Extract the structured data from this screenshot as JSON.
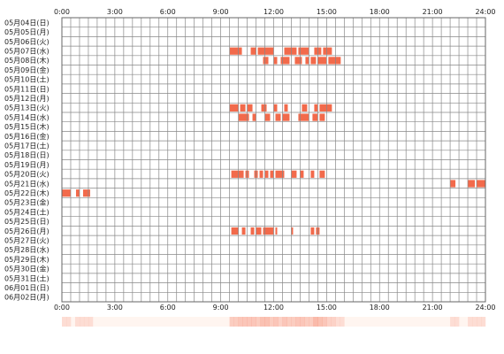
{
  "chart_data": {
    "type": "timeline",
    "title": "",
    "xlabel": "",
    "ylabel": "",
    "xlim": [
      0,
      24
    ],
    "x_ticks": [
      "0:00",
      "3:00",
      "6:00",
      "9:00",
      "12:00",
      "15:00",
      "18:00",
      "21:00",
      "24:00"
    ],
    "grid": true,
    "colors": {
      "bar": "#f26a4b",
      "grid": "#888888",
      "frame": "#666666",
      "heat": "#f26a4b",
      "heat_background": "#fff5f0"
    },
    "rows": [
      {
        "label": "05月04日(日)",
        "segments": []
      },
      {
        "label": "05月05日(月)",
        "segments": []
      },
      {
        "label": "05月06日(火)",
        "segments": []
      },
      {
        "label": "05月07日(水)",
        "segments": [
          [
            9.5,
            10.2
          ],
          [
            10.7,
            11.0
          ],
          [
            11.1,
            12.0
          ],
          [
            12.6,
            13.3
          ],
          [
            13.4,
            14.0
          ],
          [
            14.3,
            14.7
          ],
          [
            14.8,
            15.3
          ]
        ]
      },
      {
        "label": "05月08日(木)",
        "segments": [
          [
            11.4,
            11.7
          ],
          [
            12.0,
            12.2
          ],
          [
            12.4,
            12.9
          ],
          [
            13.2,
            13.6
          ],
          [
            13.8,
            14.0
          ],
          [
            14.1,
            14.4
          ],
          [
            14.5,
            15.0
          ],
          [
            15.1,
            15.8
          ]
        ]
      },
      {
        "label": "05月09日(金)",
        "segments": []
      },
      {
        "label": "05月10日(土)",
        "segments": []
      },
      {
        "label": "05月11日(日)",
        "segments": []
      },
      {
        "label": "05月12日(月)",
        "segments": []
      },
      {
        "label": "05月13日(火)",
        "segments": [
          [
            9.5,
            10.0
          ],
          [
            10.1,
            10.4
          ],
          [
            10.5,
            10.8
          ],
          [
            11.3,
            11.6
          ],
          [
            12.0,
            12.2
          ],
          [
            12.6,
            12.8
          ],
          [
            13.6,
            13.9
          ],
          [
            14.3,
            14.5
          ],
          [
            14.6,
            15.3
          ]
        ]
      },
      {
        "label": "05月14日(水)",
        "segments": [
          [
            10.0,
            10.6
          ],
          [
            10.8,
            11.0
          ],
          [
            11.5,
            11.8
          ],
          [
            12.1,
            12.4
          ],
          [
            12.5,
            12.9
          ],
          [
            13.4,
            14.0
          ],
          [
            14.2,
            14.5
          ],
          [
            14.6,
            14.9
          ]
        ]
      },
      {
        "label": "05月15日(木)",
        "segments": []
      },
      {
        "label": "05月16日(金)",
        "segments": []
      },
      {
        "label": "05月17日(土)",
        "segments": []
      },
      {
        "label": "05月18日(日)",
        "segments": []
      },
      {
        "label": "05月19日(月)",
        "segments": []
      },
      {
        "label": "05月20日(火)",
        "segments": [
          [
            9.6,
            10.3
          ],
          [
            10.4,
            10.6
          ],
          [
            10.9,
            11.1
          ],
          [
            11.2,
            11.4
          ],
          [
            11.5,
            11.7
          ],
          [
            11.8,
            12.0
          ],
          [
            12.1,
            12.6
          ],
          [
            13.0,
            13.3
          ],
          [
            13.5,
            13.7
          ],
          [
            14.1,
            14.3
          ],
          [
            14.6,
            14.9
          ]
        ]
      },
      {
        "label": "05月21日(水)",
        "segments": [
          [
            22.0,
            22.3
          ],
          [
            23.0,
            23.4
          ],
          [
            23.5,
            24.0
          ]
        ]
      },
      {
        "label": "05月22日(木)",
        "segments": [
          [
            0.0,
            0.5
          ],
          [
            0.8,
            1.0
          ],
          [
            1.2,
            1.6
          ]
        ]
      },
      {
        "label": "05月23日(金)",
        "segments": []
      },
      {
        "label": "05月24日(土)",
        "segments": []
      },
      {
        "label": "05月25日(日)",
        "segments": []
      },
      {
        "label": "05月26日(月)",
        "segments": [
          [
            9.6,
            10.0
          ],
          [
            10.2,
            10.4
          ],
          [
            10.7,
            10.9
          ],
          [
            11.0,
            11.3
          ],
          [
            11.4,
            12.0
          ],
          [
            12.1,
            12.2
          ],
          [
            13.0,
            13.1
          ],
          [
            14.1,
            14.3
          ],
          [
            14.4,
            14.6
          ]
        ]
      },
      {
        "label": "05月27日(火)",
        "segments": []
      },
      {
        "label": "05月28日(水)",
        "segments": []
      },
      {
        "label": "05月29日(木)",
        "segments": []
      },
      {
        "label": "05月30日(金)",
        "segments": []
      },
      {
        "label": "05月31日(土)",
        "segments": []
      },
      {
        "label": "06月01日(日)",
        "segments": []
      },
      {
        "label": "06月02日(月)",
        "segments": []
      }
    ]
  }
}
